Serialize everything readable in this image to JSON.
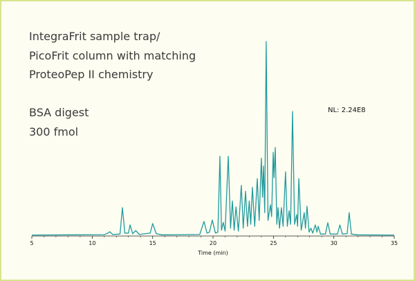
{
  "chart_data": {
    "type": "line",
    "annotations": [
      "IntegraFrit sample trap/",
      "PicoFrit column with matching",
      "ProteoPep II chemistry",
      "BSA digest",
      "300 fmol"
    ],
    "nl_label": "NL: 2.24E8",
    "xlabel": "Time (min)",
    "xlim": [
      5,
      35
    ],
    "xticks": [
      5,
      10,
      15,
      20,
      25,
      30,
      35
    ],
    "xminorticks": [
      6,
      7,
      8,
      9,
      11,
      12,
      13,
      14,
      16,
      17,
      18,
      19,
      21,
      22,
      23,
      24,
      26,
      27,
      28,
      29,
      31,
      32,
      33,
      34
    ],
    "ylim": [
      0,
      100
    ],
    "series": [
      {
        "color": "#1f9a9e",
        "x": [
          5,
          8,
          11,
          11.3,
          11.45,
          11.7,
          12.3,
          12.5,
          12.7,
          13.0,
          13.13,
          13.35,
          13.6,
          13.9,
          14.8,
          15.0,
          15.3,
          15.8,
          18.9,
          19.25,
          19.5,
          19.7,
          19.94,
          20.2,
          20.4,
          20.57,
          20.7,
          20.85,
          21.0,
          21.26,
          21.45,
          21.6,
          21.75,
          21.9,
          22.1,
          22.34,
          22.5,
          22.69,
          22.85,
          23.0,
          23.12,
          23.26,
          23.45,
          23.66,
          23.82,
          24.0,
          24.1,
          24.18,
          24.28,
          24.4,
          24.55,
          24.75,
          24.85,
          24.98,
          25.05,
          25.15,
          25.28,
          25.38,
          25.5,
          25.66,
          25.8,
          26.0,
          26.15,
          26.3,
          26.42,
          26.58,
          26.75,
          26.92,
          27.0,
          27.1,
          27.3,
          27.55,
          27.65,
          27.78,
          27.95,
          28.1,
          28.25,
          28.47,
          28.6,
          28.7,
          28.9,
          29.3,
          29.5,
          29.7,
          30.3,
          30.5,
          30.7,
          31.1,
          31.27,
          31.45,
          32,
          35
        ],
        "values": [
          0.5,
          0.6,
          0.7,
          1.5,
          2.2,
          0.8,
          1.0,
          14.6,
          1.5,
          1.5,
          5.7,
          1.2,
          2.8,
          0.8,
          1.5,
          6.4,
          1.2,
          0.6,
          0.8,
          7.5,
          1.5,
          2,
          8.2,
          1.5,
          2,
          41,
          3,
          7,
          2.5,
          41,
          4,
          18,
          3,
          15,
          2.5,
          26,
          4,
          23,
          5,
          18,
          6,
          25,
          5,
          29.5,
          8,
          40,
          20,
          36,
          12,
          100,
          8,
          16,
          10,
          43,
          30,
          45.5,
          6,
          14.6,
          4,
          14.6,
          5,
          33,
          5,
          13,
          6,
          64,
          6,
          11,
          5,
          29.5,
          3,
          12,
          4,
          15.3,
          2,
          4,
          1.5,
          5.7,
          2,
          5,
          1,
          1,
          6.8,
          1,
          1,
          5.7,
          1,
          1.2,
          12,
          1,
          0.6,
          0.5
        ]
      }
    ]
  }
}
